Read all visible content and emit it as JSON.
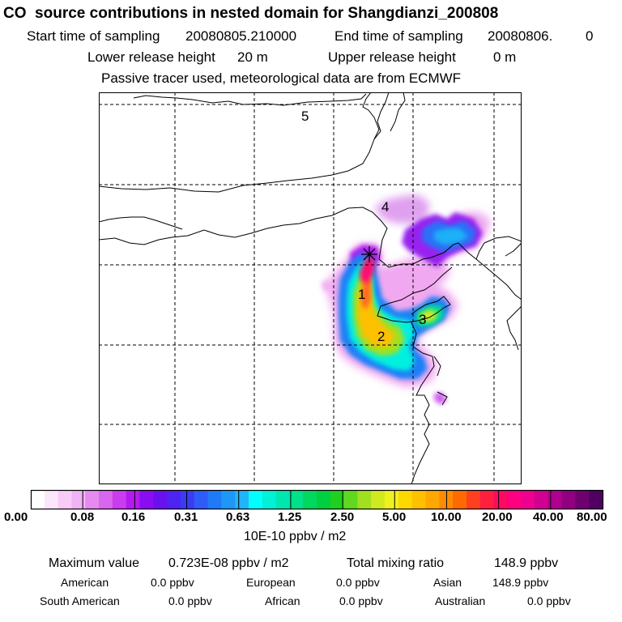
{
  "header": {
    "title": "CO  source contributions in nested domain for Shangdianzi_200808",
    "start_label": "Start time of sampling",
    "start_value": "20080805.210000",
    "end_label": "End time of sampling",
    "end_value": "20080806.",
    "end_tail": "0",
    "lower_label": "Lower release height",
    "lower_value": "20 m",
    "upper_label": "Upper release height",
    "upper_value": "0 m",
    "tracer_note": "Passive tracer used, meteorological data are from ECMWF"
  },
  "map": {
    "region_labels": [
      "5",
      "4",
      "1",
      "3",
      "2"
    ],
    "station_marker": "receptor-star"
  },
  "colorbar": {
    "tick_labels": [
      "0.00",
      "0.08",
      "0.16",
      "0.31",
      "0.63",
      "1.25",
      "2.50",
      "5.00",
      "10.00",
      "20.00",
      "40.00",
      "80.00"
    ],
    "units": "10E-10 ppbv / m2",
    "colors": [
      "#ffffff",
      "#fbe6fb",
      "#f7cdf7",
      "#f0b3f3",
      "#e58bef",
      "#d966ee",
      "#c93cef",
      "#b41af0",
      "#8a0df0",
      "#6a10f0",
      "#4d24f2",
      "#3a3cf4",
      "#2f5cf6",
      "#1f7af6",
      "#1d98f8",
      "#22b4f8",
      "#00ffff",
      "#00f0d8",
      "#00e6b0",
      "#00e08a",
      "#00d860",
      "#00d040",
      "#20d020",
      "#60d820",
      "#a0e020",
      "#d0ea20",
      "#f0f020",
      "#ffd800",
      "#ffc000",
      "#ffa800",
      "#ff8c00",
      "#ff6a00",
      "#ff4020",
      "#ff2040",
      "#ff0a60",
      "#ff0080",
      "#ee0090",
      "#d00090",
      "#b00090",
      "#900080",
      "#700070",
      "#500060"
    ]
  },
  "summary": {
    "max_label": "Maximum value",
    "max_value": "0.723E-08 ppbv / m2",
    "total_label": "Total mixing ratio",
    "total_value": "148.9 ppbv",
    "regions": [
      {
        "name": "American",
        "value": "0.0 ppbv"
      },
      {
        "name": "European",
        "value": "0.0 ppbv"
      },
      {
        "name": "Asian",
        "value": "148.9 ppbv"
      },
      {
        "name": "South American",
        "value": "0.0 ppbv"
      },
      {
        "name": "African",
        "value": "0.0 ppbv"
      },
      {
        "name": "Australian",
        "value": "0.0 ppbv"
      }
    ]
  }
}
